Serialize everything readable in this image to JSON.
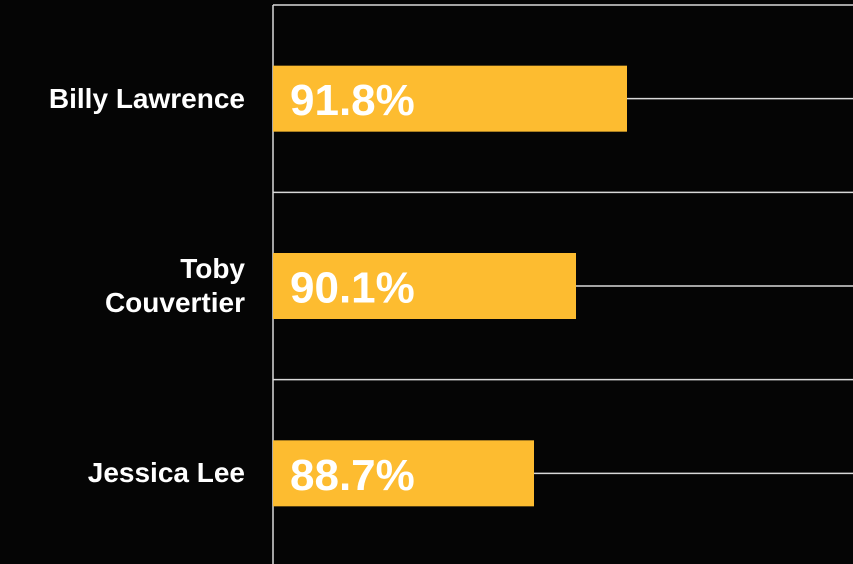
{
  "chart_data": {
    "type": "bar",
    "orientation": "horizontal",
    "categories": [
      "Billy Lawrence",
      "Toby Couvertier",
      "Jessica Lee"
    ],
    "values": [
      91.8,
      90.1,
      88.7
    ],
    "value_labels": [
      "91.8%",
      "90.1%",
      "88.7%"
    ],
    "color": "#fdbc30",
    "xlim": [
      80,
      100
    ]
  }
}
